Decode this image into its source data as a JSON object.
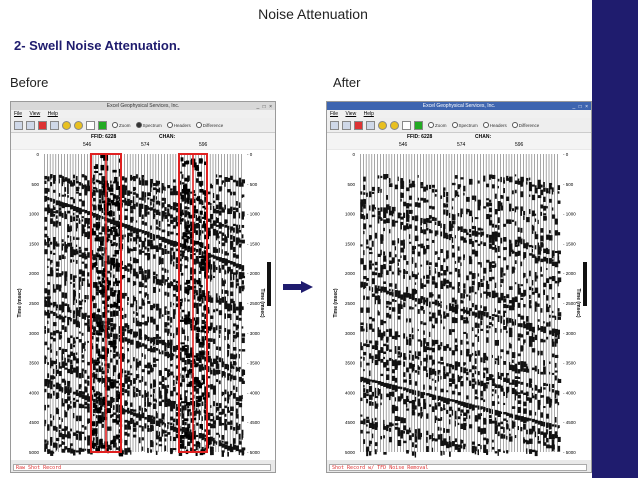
{
  "slide": {
    "title": "Noise Attenuation",
    "subtitle": "2- Swell Noise Attenuation.",
    "before_label": "Before",
    "after_label": "After"
  },
  "colors": {
    "sidebar": "#1f1c6e",
    "arrow": "#1f1c6e",
    "highlight": "#e02020"
  },
  "window": {
    "title": "Excel Geophysical Services, Inc.",
    "menu": [
      "File",
      "View",
      "Help"
    ],
    "radios": {
      "zoom": "Zoom",
      "spectrum": "Spectrum",
      "headers": "Headers",
      "difference": "Difference"
    },
    "ffid": "FFID: 6228",
    "chan_label": "CHAN:",
    "traces": [
      "546",
      "574",
      "596"
    ],
    "y_ticks": [
      "0",
      "500",
      "1000",
      "1500",
      "2000",
      "2500",
      "3000",
      "3500",
      "4000",
      "4500",
      "5000"
    ],
    "y_label": "Time (msec)"
  },
  "before": {
    "status": "Raw Shot Record"
  },
  "after": {
    "status": "Shot Record   w/ TFD Noise Removal"
  }
}
